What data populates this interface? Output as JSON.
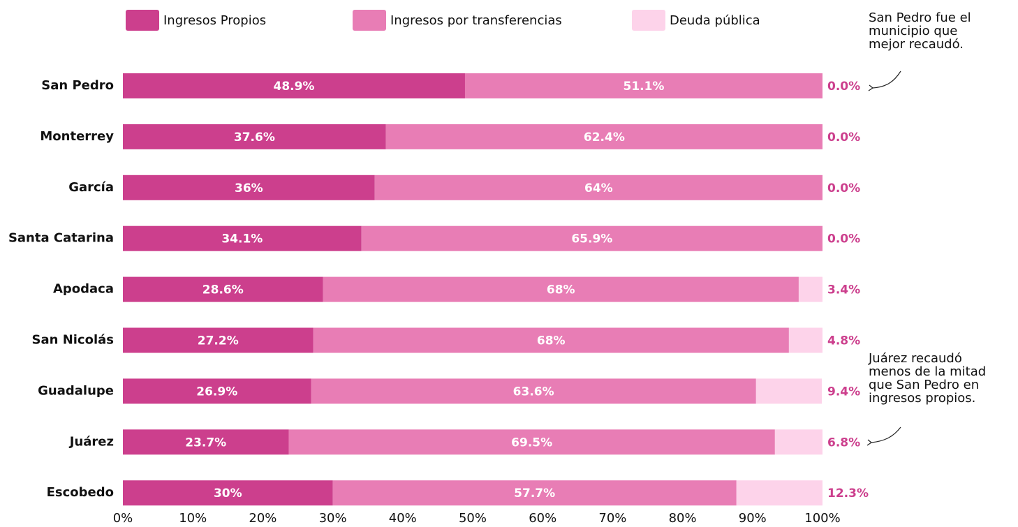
{
  "chart_data": {
    "type": "stacked_barh",
    "categories": [
      "San Pedro",
      "Monterrey",
      "García",
      "Santa Catarina",
      "Apodaca",
      "San Nicolás",
      "Guadalupe",
      "Juárez",
      "Escobedo"
    ],
    "series": [
      {
        "name": "Ingresos Propios",
        "color": "#cc3f8d",
        "values": [
          48.9,
          37.6,
          36,
          34.1,
          28.6,
          27.2,
          26.9,
          23.7,
          30
        ],
        "value_labels": [
          "48.9%",
          "37.6%",
          "36%",
          "34.1%",
          "28.6%",
          "27.2%",
          "26.9%",
          "23.7%",
          "30%"
        ]
      },
      {
        "name": "Ingresos por transferencias",
        "color": "#e87db5",
        "values": [
          51.1,
          62.4,
          64,
          65.9,
          68,
          68,
          63.6,
          69.5,
          57.7
        ],
        "value_labels": [
          "51.1%",
          "62.4%",
          "64%",
          "65.9%",
          "68%",
          "68%",
          "63.6%",
          "69.5%",
          "57.7%"
        ]
      },
      {
        "name": "Deuda pública",
        "color": "#fdd3ea",
        "values": [
          0.0,
          0.0,
          0.0,
          0.0,
          3.4,
          4.8,
          9.4,
          6.8,
          12.3
        ],
        "value_labels": [
          "0.0%",
          "0.0%",
          "0.0%",
          "0.0%",
          "3.4%",
          "4.8%",
          "9.4%",
          "6.8%",
          "12.3%"
        ]
      }
    ],
    "xlim": [
      0,
      100
    ],
    "xticks": [
      {
        "value": 0,
        "label": "0%"
      },
      {
        "value": 10,
        "label": "10%"
      },
      {
        "value": 20,
        "label": "20%"
      },
      {
        "value": 30,
        "label": "30%"
      },
      {
        "value": 40,
        "label": "40%"
      },
      {
        "value": 50,
        "label": "50%"
      },
      {
        "value": 60,
        "label": "60%"
      },
      {
        "value": 70,
        "label": "70%"
      },
      {
        "value": 80,
        "label": "80%"
      },
      {
        "value": 90,
        "label": "90%"
      },
      {
        "value": 100,
        "label": "100%"
      }
    ],
    "annotations": [
      {
        "lines": [
          "San Pedro fue el",
          "municipio que",
          "mejor recaudó."
        ]
      },
      {
        "lines": [
          "Juárez recaudó",
          "menos de la mitad",
          "que San Pedro en",
          "ingresos propios."
        ]
      }
    ]
  }
}
